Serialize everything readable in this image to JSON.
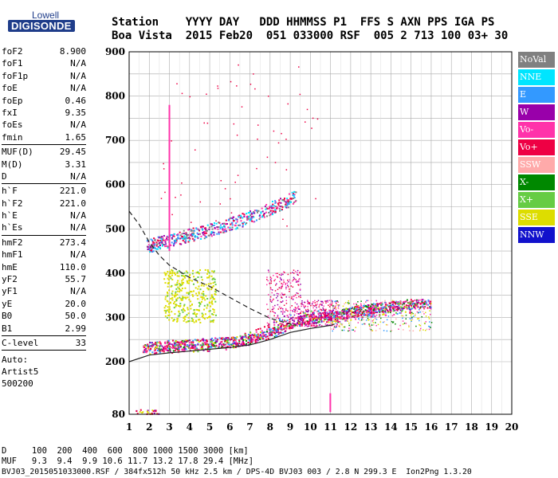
{
  "logo": {
    "line1": "Lowell",
    "line2": "DIGISONDE"
  },
  "header": {
    "line1": "Station    YYYY DAY   DDD HHMMSS P1  FFS S AXN PPS IGA PS",
    "line2": "Boa Vista  2015 Feb20  051 033000 RSF  005 2 713 100 03+ 30"
  },
  "params": {
    "group1": [
      {
        "label": "foF2",
        "value": "8.900"
      },
      {
        "label": "foF1",
        "value": "N/A"
      },
      {
        "label": "foF1p",
        "value": "N/A"
      },
      {
        "label": "foE",
        "value": "N/A"
      },
      {
        "label": "foEp",
        "value": "0.46"
      },
      {
        "label": "fxI",
        "value": "9.35"
      },
      {
        "label": "foEs",
        "value": "N/A"
      },
      {
        "label": "fmin",
        "value": "1.65"
      }
    ],
    "group2": [
      {
        "label": "MUF(D)",
        "value": "29.45"
      },
      {
        "label": "M(D)",
        "value": "3.31"
      },
      {
        "label": "D",
        "value": "N/A"
      }
    ],
    "group3": [
      {
        "label": "h`F",
        "value": "221.0"
      },
      {
        "label": "h`F2",
        "value": "221.0"
      },
      {
        "label": "h`E",
        "value": "N/A"
      },
      {
        "label": "h`Es",
        "value": "N/A"
      }
    ],
    "group4": [
      {
        "label": "hmF2",
        "value": "273.4"
      },
      {
        "label": "hmF1",
        "value": "N/A"
      },
      {
        "label": "hmE",
        "value": "110.0"
      },
      {
        "label": "yF2",
        "value": "55.7"
      },
      {
        "label": "yF1",
        "value": "N/A"
      },
      {
        "label": "yE",
        "value": "20.0"
      },
      {
        "label": "B0",
        "value": "50.0"
      },
      {
        "label": "B1",
        "value": "2.99"
      }
    ],
    "clevel": {
      "label": "C-level",
      "value": "33"
    },
    "auto": [
      "Auto:",
      "Artist5",
      "500200"
    ]
  },
  "legend": [
    {
      "label": "NoVal",
      "color": "#808080"
    },
    {
      "label": "NNE",
      "color": "#00e5ff"
    },
    {
      "label": "E",
      "color": "#3399ff"
    },
    {
      "label": "W",
      "color": "#9900aa"
    },
    {
      "label": "Vo-",
      "color": "#ff33aa"
    },
    {
      "label": "Vo+",
      "color": "#ee0044"
    },
    {
      "label": "SSW",
      "color": "#ffaaaa"
    },
    {
      "label": "X-",
      "color": "#008800"
    },
    {
      "label": "X+",
      "color": "#66cc44"
    },
    {
      "label": "SSE",
      "color": "#dddd00"
    },
    {
      "label": "NNW",
      "color": "#1111cc"
    }
  ],
  "footer": {
    "line1": "D     100  200  400  600  800 1000 1500 3000 [km]",
    "line2": "MUF   9.3  9.4  9.9 10.6 11.7 13.2 17.8 29.4 [MHz]",
    "line3": "BVJ03_2015051033000.RSF / 384fx512h 50 kHz 2.5 km / DPS-4D BVJ03 003 / 2.8 N 299.3 E  Ion2Png 1.3.20"
  },
  "chart_data": {
    "type": "scatter",
    "xlim": [
      1,
      20
    ],
    "ylim": [
      80,
      900
    ],
    "x_ticks": [
      1,
      2,
      3,
      4,
      5,
      6,
      7,
      8,
      9,
      10,
      11,
      12,
      13,
      14,
      15,
      16,
      17,
      18,
      19,
      20
    ],
    "y_ticks": [
      80,
      200,
      300,
      400,
      500,
      600,
      700,
      800,
      900
    ],
    "grid": true,
    "legend_position": "right",
    "o_trace": [
      [
        1.7,
        232
      ],
      [
        2,
        232
      ],
      [
        2.5,
        234
      ],
      [
        3,
        235
      ],
      [
        3.5,
        236
      ],
      [
        4,
        238
      ],
      [
        4.5,
        239
      ],
      [
        5,
        240
      ],
      [
        5.5,
        242
      ],
      [
        6,
        244
      ],
      [
        6.5,
        246
      ],
      [
        7,
        250
      ],
      [
        7.5,
        255
      ],
      [
        8,
        262
      ],
      [
        8.5,
        272
      ],
      [
        9,
        285
      ],
      [
        9.5,
        292
      ],
      [
        10,
        298
      ],
      [
        10.5,
        300
      ],
      [
        11,
        302
      ],
      [
        12,
        310
      ],
      [
        13,
        318
      ],
      [
        14,
        325
      ],
      [
        15,
        330
      ],
      [
        16,
        330
      ]
    ],
    "x_trace": [
      [
        1.7,
        230
      ],
      [
        2.5,
        232
      ],
      [
        3.5,
        234
      ],
      [
        4.5,
        236
      ],
      [
        5.5,
        240
      ],
      [
        6.5,
        246
      ],
      [
        7.5,
        260
      ],
      [
        8.5,
        285
      ],
      [
        9.5,
        298
      ],
      [
        10.5,
        302
      ],
      [
        11.5,
        305
      ],
      [
        12.5,
        312
      ],
      [
        13.5,
        318
      ],
      [
        14.5,
        322
      ],
      [
        15,
        322
      ]
    ],
    "multihop_trace": [
      [
        1.9,
        460
      ],
      [
        2.5,
        468
      ],
      [
        3,
        472
      ],
      [
        3.5,
        478
      ],
      [
        4,
        485
      ],
      [
        4.5,
        490
      ],
      [
        5,
        496
      ],
      [
        6,
        510
      ],
      [
        7,
        525
      ],
      [
        8,
        545
      ],
      [
        8.5,
        555
      ],
      [
        9,
        565
      ],
      [
        9.3,
        575
      ]
    ],
    "es_cluster": [
      [
        2.8,
        330
      ],
      [
        3,
        350
      ],
      [
        3.5,
        355
      ],
      [
        4,
        345
      ],
      [
        4.5,
        360
      ],
      [
        5,
        340
      ],
      [
        3.2,
        300
      ],
      [
        4.2,
        310
      ]
    ],
    "solid_profile": [
      [
        1,
        200
      ],
      [
        2,
        215
      ],
      [
        3,
        220
      ],
      [
        4,
        224
      ],
      [
        5,
        228
      ],
      [
        6,
        232
      ],
      [
        7,
        238
      ],
      [
        8,
        250
      ],
      [
        9,
        266
      ],
      [
        10,
        275
      ],
      [
        11,
        282
      ],
      [
        11.2,
        285
      ]
    ],
    "dashed_muf": [
      [
        1,
        540
      ],
      [
        1.5,
        510
      ],
      [
        2,
        470
      ],
      [
        2.5,
        440
      ],
      [
        3,
        418
      ],
      [
        4,
        390
      ],
      [
        5,
        370
      ],
      [
        6,
        345
      ],
      [
        7,
        320
      ],
      [
        8,
        298
      ],
      [
        9,
        285
      ],
      [
        9.3,
        282
      ]
    ]
  }
}
